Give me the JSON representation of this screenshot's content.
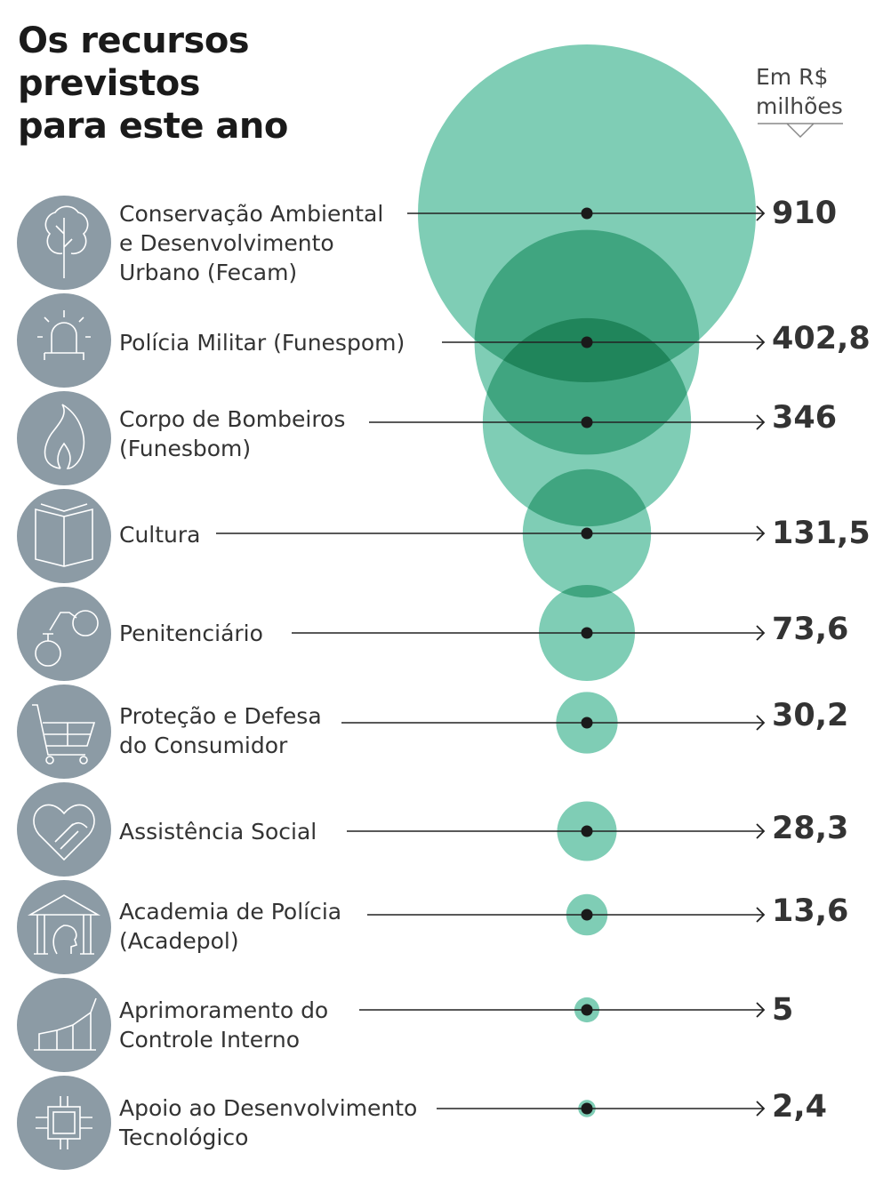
{
  "title": "Os recursos\nprevistos\npara este ano",
  "unit_label": "Em R$\nmilhões",
  "colors": {
    "bubble": "#7fcdb5",
    "icon_circle": "#8c9ba5",
    "text": "#333333",
    "line": "#222222"
  },
  "chart_data": {
    "type": "bubble",
    "title": "Os recursos previstos para este ano",
    "unit": "Em R$ milhões",
    "categories": [
      "Conservação Ambiental\ne Desenvolvimento\nUrbano (Fecam)",
      "Polícia Militar (Funespom)",
      "Corpo de Bombeiros\n(Funesbom)",
      "Cultura",
      "Penitenciário",
      "Proteção e Defesa\ndo Consumidor",
      "Assistência Social",
      "Academia de Polícia\n(Acadepol)",
      " Aprimoramento do\nControle Interno",
      "Apoio ao Desenvolvimento\nTecnológico"
    ],
    "values": [
      910,
      402.8,
      346,
      131.5,
      73.6,
      30.2,
      28.3,
      13.6,
      5,
      2.4
    ],
    "value_labels": [
      "910",
      "402,8",
      "346",
      "131,5",
      "73,6",
      "30,2",
      "28,3",
      "13,6",
      "5",
      "2,4"
    ],
    "icons": [
      "tree-icon",
      "siren-icon",
      "flame-icon",
      "book-icon",
      "ball-and-chain-icon",
      "shopping-cart-icon",
      "handshake-icon",
      "police-academy-icon",
      "growth-chart-icon",
      "microchip-icon"
    ]
  }
}
